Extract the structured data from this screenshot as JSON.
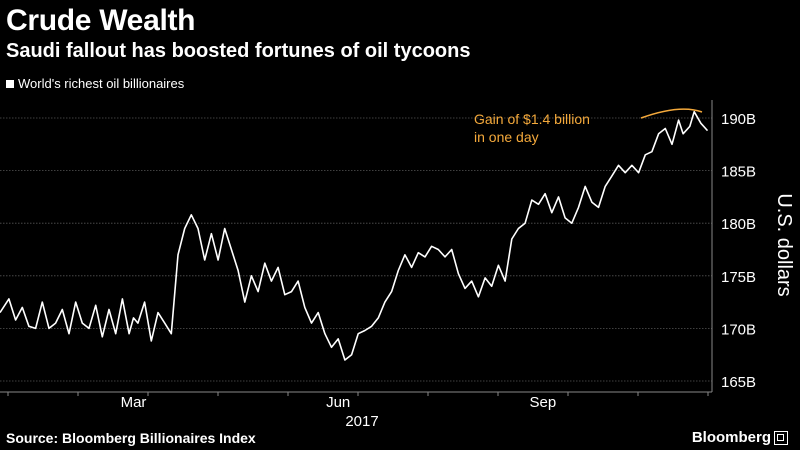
{
  "header": {
    "title": "Crude Wealth",
    "subtitle": "Saudi fallout has boosted fortunes of oil tycoons"
  },
  "footer": {
    "source": "Source: Bloomberg Billionaires Index",
    "brand": "Bloomberg"
  },
  "chart_data": {
    "type": "line",
    "ylabel": "U.S. dollars",
    "ylim": [
      164,
      192
    ],
    "yticks": [
      165,
      170,
      175,
      180,
      185,
      190
    ],
    "ytick_labels": [
      "165B",
      "170B",
      "175B",
      "180B",
      "185B",
      "190B"
    ],
    "xticks": [
      {
        "label": "Mar",
        "x": 60
      },
      {
        "label": "Jun",
        "x": 152
      },
      {
        "label": "Sep",
        "x": 244
      }
    ],
    "year_label": "2017",
    "grid": true,
    "legend_position": "top-left",
    "annotation": {
      "text_lines": [
        "Gain of $1.4 billion",
        "in one day"
      ],
      "color": "#f4a93b"
    },
    "series": [
      {
        "name": "World's richest oil billionaires",
        "color": "#ffffff",
        "x": [
          0,
          4,
          7,
          10,
          13,
          16,
          19,
          22,
          25,
          28,
          31,
          34,
          37,
          40,
          43,
          46,
          49,
          52,
          55,
          58,
          60,
          62,
          65,
          68,
          71,
          74,
          77,
          80,
          83,
          86,
          89,
          92,
          95,
          98,
          101,
          104,
          107,
          110,
          113,
          116,
          119,
          122,
          125,
          128,
          131,
          134,
          137,
          140,
          143,
          146,
          149,
          152,
          155,
          158,
          161,
          164,
          167,
          170,
          173,
          176,
          179,
          182,
          185,
          188,
          191,
          194,
          197,
          200,
          203,
          206,
          209,
          212,
          215,
          218,
          221,
          224,
          227,
          230,
          233,
          236,
          239,
          242,
          245,
          248,
          251,
          254,
          257,
          260,
          263,
          266,
          269,
          272,
          275,
          278,
          281,
          284,
          287,
          290,
          293,
          296,
          299,
          302,
          305,
          307,
          310,
          312,
          315,
          318
        ],
        "values": [
          171.5,
          172.8,
          170.8,
          172.0,
          170.2,
          170.0,
          172.5,
          170.0,
          170.5,
          171.8,
          169.5,
          172.5,
          170.5,
          170.0,
          172.2,
          169.2,
          171.8,
          169.5,
          172.8,
          169.5,
          171.0,
          170.5,
          172.5,
          168.8,
          171.5,
          170.5,
          169.5,
          177.0,
          179.5,
          180.8,
          179.5,
          176.5,
          179.0,
          176.5,
          179.5,
          177.5,
          175.5,
          172.5,
          175.0,
          173.5,
          176.2,
          174.5,
          175.8,
          173.2,
          173.5,
          174.5,
          172.0,
          170.5,
          171.5,
          169.5,
          168.2,
          169.0,
          167.0,
          167.5,
          169.5,
          169.8,
          170.2,
          171.0,
          172.5,
          173.5,
          175.5,
          177.0,
          175.8,
          177.2,
          176.8,
          177.8,
          177.5,
          176.8,
          177.5,
          175.2,
          173.8,
          174.5,
          173.0,
          174.8,
          174.0,
          176.0,
          174.5,
          178.5,
          179.5,
          180.0,
          182.2,
          181.8,
          182.8,
          181.0,
          182.5,
          180.5,
          180.0,
          181.5,
          183.5,
          182.0,
          181.5,
          183.5,
          184.5,
          185.5,
          184.8,
          185.5,
          184.8,
          186.5,
          186.8,
          188.5,
          189.0,
          187.5,
          189.8,
          188.5,
          189.2,
          190.6,
          189.5,
          188.8
        ]
      }
    ]
  }
}
